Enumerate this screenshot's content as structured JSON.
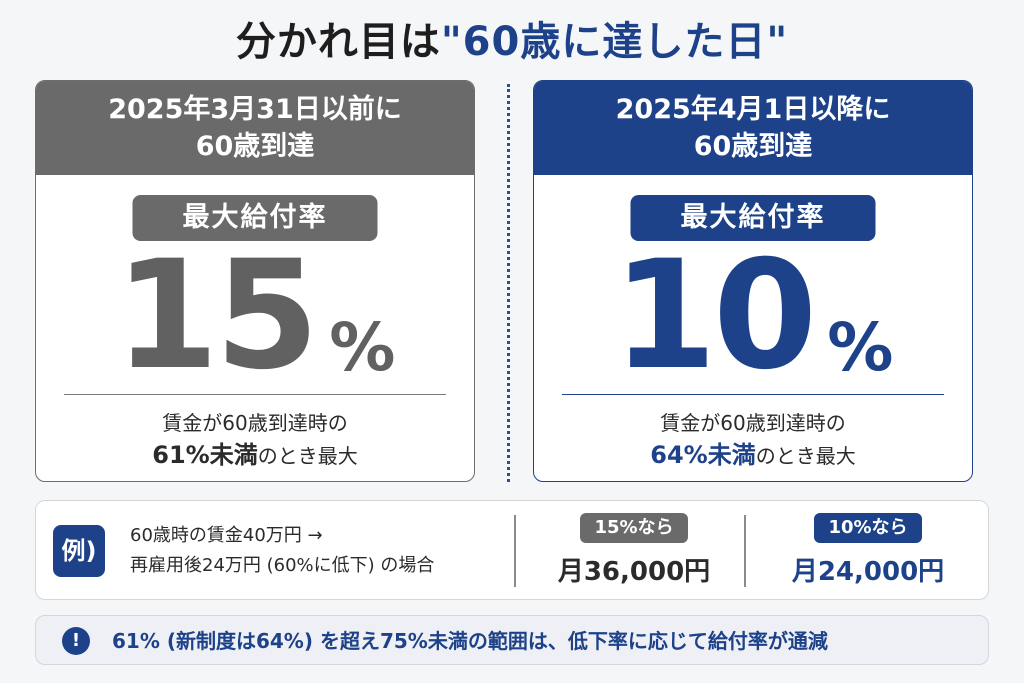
{
  "title": {
    "part1": "分かれ目は",
    "part2": "\"60歳に達した日\""
  },
  "left_card": {
    "heading_line1": "2025年3月31日以前に",
    "heading_line2": "60歳到達",
    "badge": "最大給付率",
    "rate_value": "15",
    "rate_unit": "%",
    "desc_line1": "賃金が60歳到達時の",
    "desc_emph": "61%未満",
    "desc_tail": "のとき最大"
  },
  "right_card": {
    "heading_line1": "2025年4月1日以降に",
    "heading_line2": "60歳到達",
    "badge": "最大給付率",
    "rate_value": "10",
    "rate_unit": "%",
    "desc_line1": "賃金が60歳到達時の",
    "desc_emph": "64%未満",
    "desc_tail": "のとき最大"
  },
  "example": {
    "icon_label": "例)",
    "line1": "60歳時の賃金40万円 →",
    "line2": "再雇用後24万円 (60%に低下) の場合",
    "case_a_label": "15%なら",
    "case_a_amount": "月36,000円",
    "case_b_label": "10%なら",
    "case_b_amount": "月24,000円"
  },
  "note": {
    "icon": "!",
    "text": "61% (新制度は64%) を超え75%未満の範囲は、低下率に応じて給付率が通減"
  },
  "colors": {
    "navy": "#1d4289",
    "gray": "#6a6a6a"
  }
}
